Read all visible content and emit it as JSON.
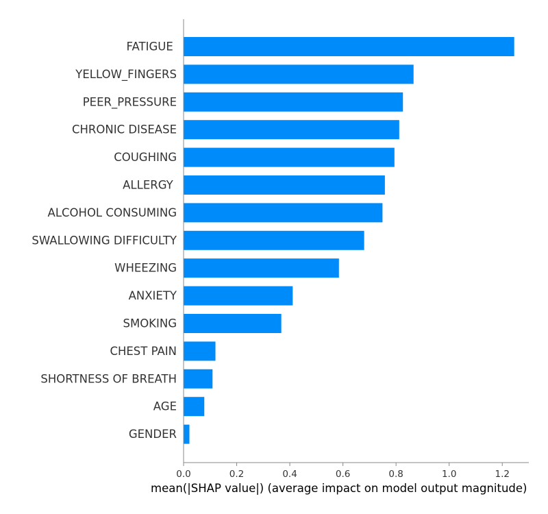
{
  "chart_data": {
    "type": "bar",
    "orientation": "horizontal",
    "bar_color": "#008bfb",
    "axis_color": "#888888",
    "label_color": "#333333",
    "xlabel": "mean(|SHAP value|) (average impact on model output magnitude)",
    "xlim": [
      0,
      1.3
    ],
    "xticks": [
      0.0,
      0.2,
      0.4,
      0.6,
      0.8,
      1.0,
      1.2
    ],
    "xtick_labels": [
      "0.0",
      "0.2",
      "0.4",
      "0.6",
      "0.8",
      "1.0",
      "1.2"
    ],
    "grid": false,
    "categories": [
      "FATIGUE ",
      "YELLOW_FINGERS",
      "PEER_PRESSURE",
      "CHRONIC DISEASE",
      "COUGHING",
      "ALLERGY ",
      "ALCOHOL CONSUMING",
      "SWALLOWING DIFFICULTY",
      "WHEEZING",
      "ANXIETY",
      "SMOKING",
      "CHEST PAIN",
      "SHORTNESS OF BREATH",
      "AGE",
      "GENDER"
    ],
    "values": [
      1.245,
      0.866,
      0.826,
      0.812,
      0.794,
      0.758,
      0.749,
      0.68,
      0.585,
      0.411,
      0.368,
      0.12,
      0.109,
      0.078,
      0.022
    ]
  }
}
